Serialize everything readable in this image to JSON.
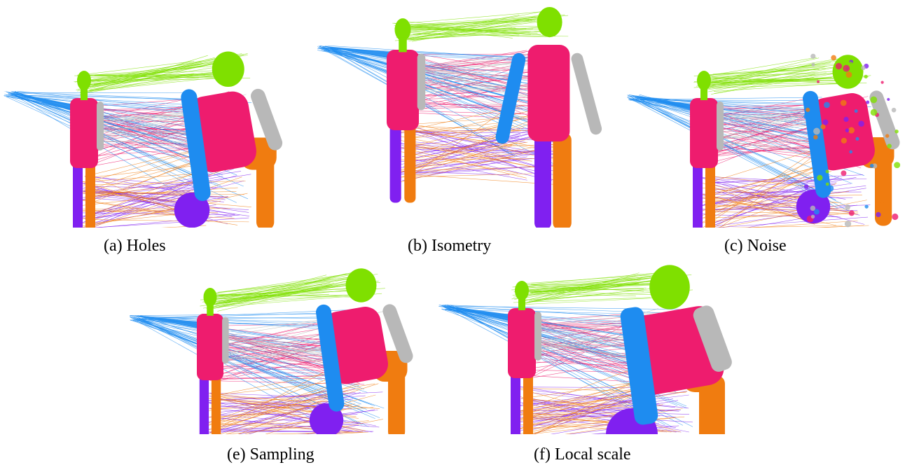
{
  "figure": {
    "panels": [
      {
        "id": "a",
        "caption": "(a) Holes",
        "variant": "holes"
      },
      {
        "id": "b",
        "caption": "(b) Isometry",
        "variant": "isometry"
      },
      {
        "id": "c",
        "caption": "(c) Noise",
        "variant": "noise"
      },
      {
        "id": "e",
        "caption": "(e) Sampling",
        "variant": "sampling"
      },
      {
        "id": "f",
        "caption": "(f) Local scale",
        "variant": "localscale"
      }
    ],
    "part_colors": {
      "head": "#7fe000",
      "torso": "#ee1c6e",
      "left_arm": "#1e8cf0",
      "right_arm": "#b8b8b8",
      "left_leg": "#8020f0",
      "right_leg": "#f07c10"
    }
  }
}
